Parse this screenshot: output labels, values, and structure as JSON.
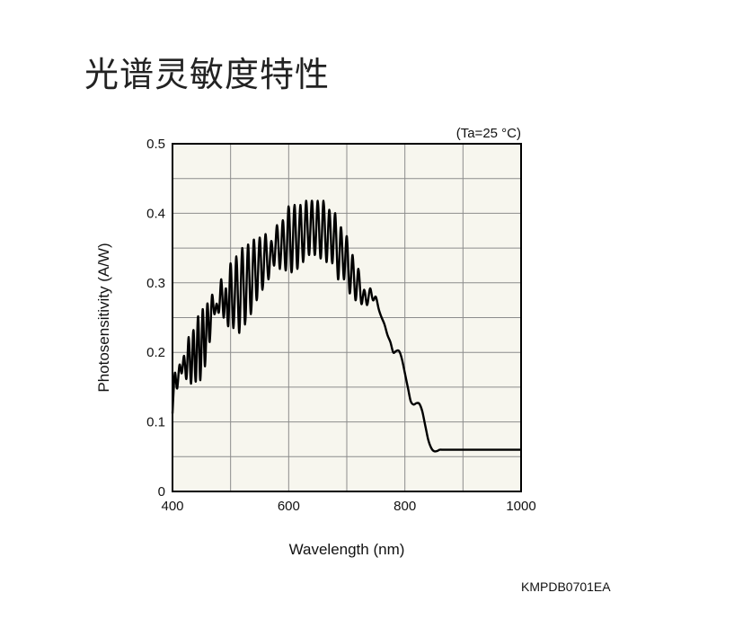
{
  "page": {
    "title": "光谱灵敏度特性",
    "code": "KMPDB0701EA"
  },
  "chart_data": {
    "type": "line",
    "title": "",
    "condition_note": "(Ta=25 °C)",
    "xlabel": "Wavelength (nm)",
    "ylabel": "Photosensitivity (A/W)",
    "xlim": [
      400,
      1000
    ],
    "ylim": [
      0,
      0.5
    ],
    "x_ticks": [
      400,
      600,
      800,
      1000
    ],
    "x_tick_labels": [
      "400",
      "600",
      "800",
      "1000"
    ],
    "y_ticks": [
      0,
      0.1,
      0.2,
      0.3,
      0.4,
      0.5
    ],
    "y_tick_labels": [
      "0",
      "0.1",
      "0.2",
      "0.3",
      "0.4",
      "0.5"
    ],
    "grid": true,
    "colors": {
      "background": "#f7f6ee",
      "grid": "#8c8c8c",
      "line": "#000000"
    },
    "series": [
      {
        "name": "",
        "x": [
          400,
          404,
          408,
          412,
          416,
          420,
          424,
          428,
          432,
          436,
          440,
          444,
          448,
          452,
          456,
          460,
          464,
          468,
          472,
          476,
          480,
          484,
          488,
          492,
          496,
          500,
          505,
          510,
          515,
          520,
          525,
          530,
          535,
          540,
          545,
          550,
          555,
          560,
          565,
          570,
          575,
          580,
          585,
          590,
          595,
          600,
          605,
          610,
          615,
          620,
          625,
          630,
          635,
          640,
          645,
          650,
          655,
          660,
          665,
          670,
          675,
          680,
          685,
          690,
          695,
          700,
          705,
          710,
          715,
          720,
          725,
          730,
          735,
          740,
          745,
          750,
          755,
          760,
          765,
          770,
          775,
          780,
          785,
          790,
          795,
          800,
          805,
          810,
          815,
          820,
          825,
          830,
          835,
          840,
          845,
          850,
          855,
          860,
          865,
          870,
          875,
          880,
          885,
          890,
          895,
          900,
          905,
          910,
          915,
          920,
          925,
          930,
          935,
          940,
          945,
          950,
          955,
          960,
          965,
          970,
          975,
          980,
          985,
          990,
          995,
          1000
        ],
        "values": [
          0.112,
          0.17,
          0.148,
          0.182,
          0.17,
          0.195,
          0.162,
          0.222,
          0.155,
          0.232,
          0.158,
          0.252,
          0.16,
          0.262,
          0.18,
          0.27,
          0.215,
          0.282,
          0.255,
          0.27,
          0.258,
          0.305,
          0.25,
          0.292,
          0.238,
          0.328,
          0.235,
          0.338,
          0.228,
          0.35,
          0.24,
          0.355,
          0.255,
          0.362,
          0.275,
          0.365,
          0.29,
          0.37,
          0.305,
          0.36,
          0.325,
          0.383,
          0.32,
          0.39,
          0.318,
          0.41,
          0.315,
          0.412,
          0.32,
          0.412,
          0.33,
          0.418,
          0.34,
          0.418,
          0.34,
          0.418,
          0.335,
          0.418,
          0.33,
          0.405,
          0.328,
          0.4,
          0.305,
          0.38,
          0.305,
          0.367,
          0.285,
          0.34,
          0.275,
          0.32,
          0.27,
          0.29,
          0.268,
          0.292,
          0.275,
          0.28,
          0.262,
          0.25,
          0.24,
          0.225,
          0.215,
          0.2,
          0.202,
          0.202,
          0.19,
          0.17,
          0.15,
          0.13,
          0.125,
          0.127,
          0.126,
          0.115,
          0.095,
          0.075,
          0.063,
          0.058,
          0.058,
          0.06,
          0.06,
          0.06,
          0.06,
          0.06,
          0.06,
          0.06,
          0.06,
          0.06,
          0.06,
          0.06,
          0.06,
          0.06,
          0.06,
          0.06,
          0.06,
          0.06,
          0.06,
          0.06,
          0.06,
          0.06,
          0.06,
          0.06,
          0.06,
          0.06,
          0.06,
          0.06,
          0.06,
          0.06
        ]
      }
    ]
  }
}
